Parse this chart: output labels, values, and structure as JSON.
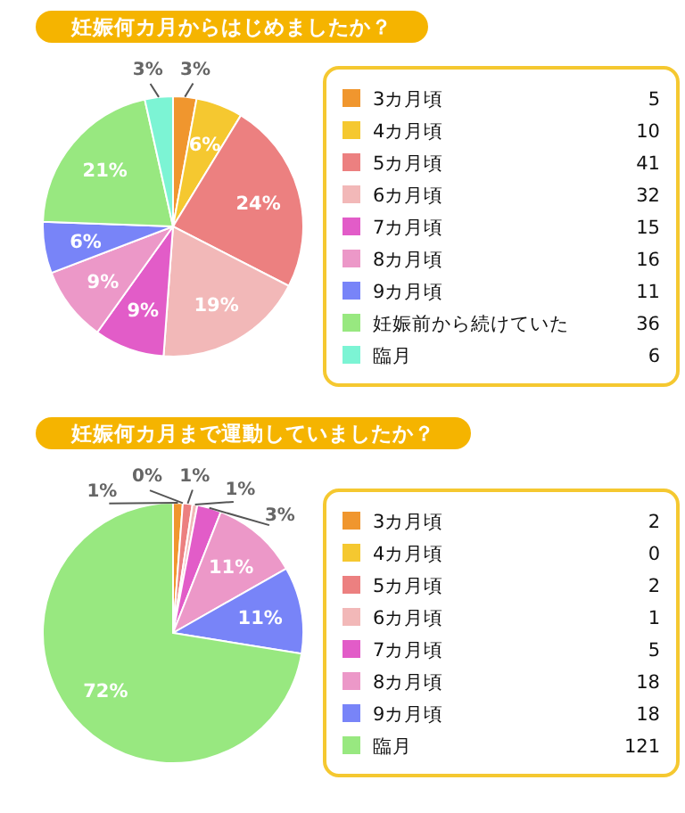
{
  "chart_data": [
    {
      "type": "pie",
      "title": "妊娠何カ月からはじめましたか？",
      "categories": [
        "3カ月頃",
        "4カ月頃",
        "5カ月頃",
        "6カ月頃",
        "7カ月頃",
        "8カ月頃",
        "9カ月頃",
        "妊娠前から続けていた",
        "臨月"
      ],
      "values": [
        5,
        10,
        41,
        32,
        15,
        16,
        11,
        36,
        6
      ],
      "value_labels": [
        "5",
        "10",
        "41",
        "32",
        "15",
        "16",
        "11",
        "36",
        "6"
      ],
      "colors": [
        "#f0962e",
        "#f5c830",
        "#ec8080",
        "#f2b8b8",
        "#e25cc8",
        "#ec98c8",
        "#7884f8",
        "#98e880",
        "#7cf4d4"
      ],
      "legend": "right",
      "annotations": [
        {
          "text": "3%",
          "x": "3カ月頃"
        },
        {
          "text": "6%",
          "x": "4カ月頃"
        },
        {
          "text": "24%",
          "x": "5カ月頃"
        },
        {
          "text": "19%",
          "x": "6カ月頃"
        },
        {
          "text": "9%",
          "x": "7カ月頃"
        },
        {
          "text": "9%",
          "x": "8カ月頃"
        },
        {
          "text": "6%",
          "x": "9カ月頃"
        },
        {
          "text": "21%",
          "x": "妊娠前から続けていた"
        },
        {
          "text": "3%",
          "x": "臨月"
        }
      ]
    },
    {
      "type": "pie",
      "title": "妊娠何カ月まで運動していましたか？",
      "categories": [
        "3カ月頃",
        "4カ月頃",
        "5カ月頃",
        "6カ月頃",
        "7カ月頃",
        "8カ月頃",
        "9カ月頃",
        "臨月"
      ],
      "values": [
        2,
        0,
        2,
        1,
        5,
        18,
        18,
        121
      ],
      "value_labels": [
        "2",
        "0",
        "2",
        "1",
        "5",
        "18",
        "18",
        "121"
      ],
      "colors": [
        "#f0962e",
        "#f5c830",
        "#ec8080",
        "#f2b8b8",
        "#e25cc8",
        "#ec98c8",
        "#7884f8",
        "#98e880"
      ],
      "legend": "right",
      "annotations": [
        {
          "text": "1%",
          "x": "3カ月頃"
        },
        {
          "text": "0%",
          "x": "4カ月頃"
        },
        {
          "text": "1%",
          "x": "5カ月頃"
        },
        {
          "text": "1%",
          "x": "6カ月頃"
        },
        {
          "text": "3%",
          "x": "7カ月頃"
        },
        {
          "text": "11%",
          "x": "8カ月頃"
        },
        {
          "text": "11%",
          "x": "9カ月頃"
        },
        {
          "text": "72%",
          "x": "臨月"
        }
      ]
    }
  ]
}
